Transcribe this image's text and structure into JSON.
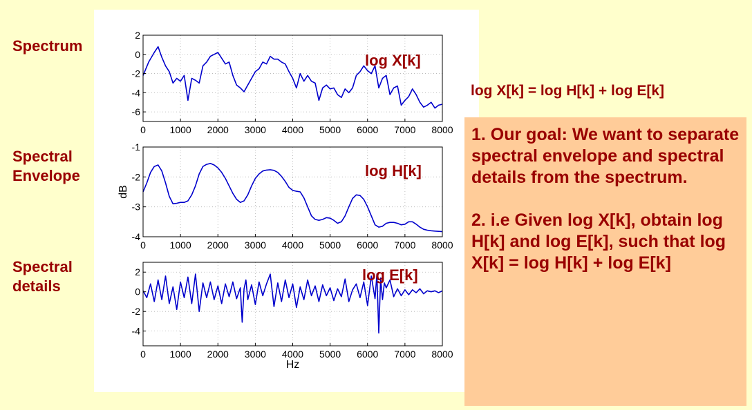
{
  "labels": {
    "spectrum": "Spectrum",
    "envelope_line1": "Spectral",
    "envelope_line2": "Envelope",
    "details_line1": "Spectral",
    "details_line2": "details"
  },
  "equation": "log X[k] = log H[k] + log E[k]",
  "info": {
    "point1": "1. Our goal: We want to separate spectral envelope and spectral details from the spectrum.",
    "point2": "2. i.e Given log X[k], obtain log H[k] and log E[k], such that log X[k] = log H[k] + log E[k]"
  },
  "colors": {
    "line": "#0000CC",
    "label": "#990000",
    "background": "#FFFFCC",
    "box": "#FFCC99"
  },
  "chart_data": [
    {
      "type": "line",
      "overlay_label": "log X[k]",
      "xlabel": "",
      "ylabel": "",
      "xlim": [
        0,
        8000
      ],
      "ylim": [
        -7,
        2
      ],
      "xticks": [
        0,
        1000,
        2000,
        3000,
        4000,
        5000,
        6000,
        7000,
        8000
      ],
      "yticks": [
        2,
        0,
        -2,
        -4,
        -6
      ],
      "grid": true,
      "x": [
        0,
        150,
        300,
        400,
        500,
        600,
        700,
        800,
        900,
        1000,
        1100,
        1200,
        1300,
        1400,
        1500,
        1600,
        1700,
        1800,
        1900,
        2000,
        2100,
        2200,
        2300,
        2400,
        2500,
        2600,
        2700,
        2800,
        2900,
        3000,
        3100,
        3200,
        3300,
        3400,
        3500,
        3600,
        3700,
        3800,
        3900,
        4000,
        4100,
        4200,
        4300,
        4400,
        4500,
        4600,
        4700,
        4800,
        4900,
        5000,
        5100,
        5200,
        5300,
        5400,
        5500,
        5600,
        5700,
        5800,
        5900,
        6000,
        6100,
        6200,
        6300,
        6400,
        6500,
        6600,
        6700,
        6800,
        6900,
        7000,
        7100,
        7200,
        7300,
        7400,
        7500,
        7600,
        7700,
        7800,
        7900,
        8000
      ],
      "y": [
        -2.2,
        -0.8,
        0.2,
        0.8,
        -0.3,
        -1.2,
        -1.8,
        -3.0,
        -2.5,
        -2.8,
        -2.2,
        -4.8,
        -2.5,
        -2.7,
        -3.0,
        -1.2,
        -0.8,
        -0.2,
        0.0,
        0.2,
        -0.4,
        -1.0,
        -0.8,
        -2.2,
        -3.2,
        -3.5,
        -3.9,
        -3.2,
        -2.5,
        -1.8,
        -1.5,
        -0.8,
        -1.0,
        -0.2,
        -0.5,
        -0.5,
        -0.8,
        -1.0,
        -1.8,
        -2.5,
        -3.5,
        -2.0,
        -2.8,
        -2.2,
        -2.8,
        -3.0,
        -4.8,
        -3.5,
        -3.2,
        -3.6,
        -3.5,
        -4.2,
        -4.5,
        -3.6,
        -4.0,
        -3.5,
        -2.2,
        -1.8,
        -1.2,
        -1.7,
        -2.0,
        -1.2,
        -3.5,
        -2.5,
        -2.2,
        -4.2,
        -3.5,
        -3.3,
        -5.3,
        -4.8,
        -4.4,
        -3.6,
        -4.2,
        -5.0,
        -5.5,
        -5.3,
        -5.0,
        -5.6,
        -5.3,
        -5.2
      ]
    },
    {
      "type": "line",
      "overlay_label": "log H[k]",
      "xlabel": "",
      "ylabel": "dB",
      "xlim": [
        0,
        8000
      ],
      "ylim": [
        -4,
        -1
      ],
      "xticks": [
        0,
        1000,
        2000,
        3000,
        4000,
        5000,
        6000,
        7000,
        8000
      ],
      "yticks": [
        -1,
        -2,
        -3,
        -4
      ],
      "grid": true,
      "x": [
        0,
        100,
        200,
        300,
        400,
        500,
        600,
        700,
        800,
        900,
        1000,
        1100,
        1200,
        1300,
        1400,
        1500,
        1600,
        1700,
        1800,
        1900,
        2000,
        2100,
        2200,
        2300,
        2400,
        2500,
        2600,
        2700,
        2800,
        2900,
        3000,
        3100,
        3200,
        3300,
        3400,
        3500,
        3600,
        3700,
        3800,
        3900,
        4000,
        4100,
        4200,
        4300,
        4400,
        4500,
        4600,
        4700,
        4800,
        4900,
        5000,
        5100,
        5200,
        5300,
        5400,
        5500,
        5600,
        5700,
        5800,
        5900,
        6000,
        6100,
        6200,
        6300,
        6400,
        6500,
        6600,
        6700,
        6800,
        6900,
        7000,
        7100,
        7200,
        7300,
        7400,
        7500,
        7600,
        7700,
        7800,
        7900,
        8000
      ],
      "y": [
        -2.5,
        -2.2,
        -1.85,
        -1.65,
        -1.6,
        -1.8,
        -2.2,
        -2.65,
        -2.9,
        -2.88,
        -2.85,
        -2.85,
        -2.8,
        -2.6,
        -2.3,
        -1.9,
        -1.65,
        -1.58,
        -1.55,
        -1.6,
        -1.7,
        -1.85,
        -2.05,
        -2.3,
        -2.55,
        -2.75,
        -2.85,
        -2.8,
        -2.6,
        -2.3,
        -2.05,
        -1.9,
        -1.8,
        -1.77,
        -1.76,
        -1.78,
        -1.85,
        -1.98,
        -2.15,
        -2.35,
        -2.45,
        -2.48,
        -2.5,
        -2.7,
        -3.0,
        -3.3,
        -3.42,
        -3.45,
        -3.42,
        -3.36,
        -3.38,
        -3.45,
        -3.55,
        -3.5,
        -3.3,
        -3.0,
        -2.72,
        -2.6,
        -2.62,
        -2.75,
        -3.0,
        -3.3,
        -3.6,
        -3.68,
        -3.65,
        -3.55,
        -3.52,
        -3.52,
        -3.55,
        -3.6,
        -3.58,
        -3.5,
        -3.5,
        -3.58,
        -3.68,
        -3.75,
        -3.78,
        -3.8,
        -3.81,
        -3.82,
        -3.83
      ]
    },
    {
      "type": "line",
      "overlay_label": "log E[k]",
      "xlabel": "Hz",
      "ylabel": "",
      "xlim": [
        0,
        8000
      ],
      "ylim": [
        -5.5,
        3
      ],
      "xticks": [
        0,
        1000,
        2000,
        3000,
        4000,
        5000,
        6000,
        7000,
        8000
      ],
      "yticks": [
        2,
        0,
        -2,
        -4
      ],
      "grid": true,
      "x": [
        0,
        100,
        200,
        300,
        400,
        500,
        600,
        700,
        800,
        900,
        1000,
        1100,
        1200,
        1300,
        1400,
        1500,
        1600,
        1700,
        1800,
        1900,
        2000,
        2100,
        2200,
        2300,
        2400,
        2500,
        2600,
        2650,
        2700,
        2750,
        2800,
        2900,
        3000,
        3100,
        3200,
        3300,
        3400,
        3500,
        3600,
        3700,
        3800,
        3900,
        4000,
        4100,
        4200,
        4300,
        4400,
        4500,
        4600,
        4700,
        4800,
        4900,
        5000,
        5100,
        5200,
        5300,
        5400,
        5500,
        5600,
        5700,
        5800,
        5900,
        6000,
        6100,
        6200,
        6250,
        6300,
        6350,
        6400,
        6450,
        6500,
        6600,
        6700,
        6800,
        6900,
        7000,
        7100,
        7200,
        7300,
        7400,
        7500,
        7600,
        7700,
        7800,
        7900,
        8000
      ],
      "y": [
        0.1,
        -0.6,
        0.8,
        -1.0,
        1.2,
        -0.8,
        1.6,
        -1.2,
        0.5,
        -1.8,
        1.0,
        -0.6,
        1.5,
        -1.2,
        1.8,
        -2.0,
        0.9,
        -0.6,
        1.0,
        -0.8,
        0.6,
        -1.2,
        0.8,
        -0.5,
        1.0,
        -0.7,
        0.4,
        -3.1,
        0.3,
        1.2,
        -0.8,
        0.7,
        -1.3,
        1.0,
        -0.4,
        0.8,
        1.8,
        -1.5,
        0.9,
        -1.0,
        1.2,
        -0.6,
        0.8,
        -1.6,
        0.5,
        -0.8,
        1.2,
        -0.4,
        0.6,
        -1.0,
        0.7,
        -0.4,
        0.4,
        -0.9,
        0.3,
        -0.5,
        1.3,
        -1.0,
        0.2,
        0.8,
        -0.6,
        1.0,
        -1.4,
        1.6,
        -0.7,
        1.8,
        -4.2,
        1.4,
        -0.8,
        0.9,
        0.4,
        1.2,
        -0.5,
        0.3,
        -0.4,
        0.2,
        -0.3,
        0.2,
        -0.1,
        0.3,
        -0.2,
        0.1,
        0.0,
        0.1,
        -0.1,
        0.1
      ]
    }
  ]
}
